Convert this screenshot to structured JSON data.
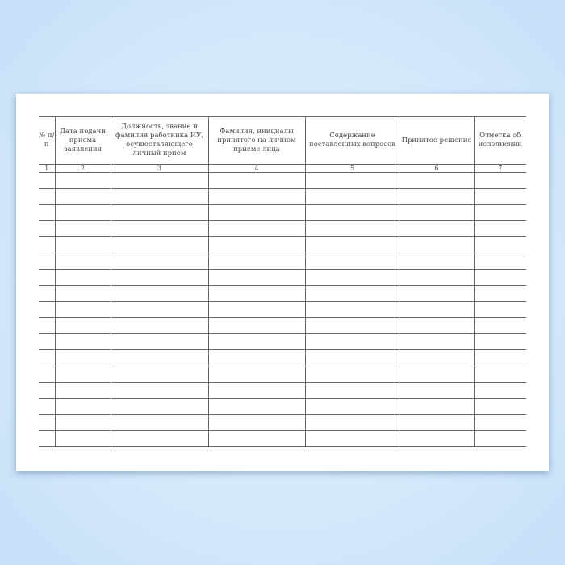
{
  "table": {
    "headers": [
      "№ п/п",
      "Дата подачи приема заявления",
      "Должность, звание и фамилия работника ИУ, осуществляющего личный прием",
      "Фамилия, инициалы принятого на личном приеме лица",
      "Содержание поставленных вопросов",
      "Принятое решение",
      "Отметка об исполнении"
    ],
    "column_numbers": [
      "1",
      "2",
      "3",
      "4",
      "5",
      "6",
      "7"
    ],
    "empty_rows": 17
  }
}
